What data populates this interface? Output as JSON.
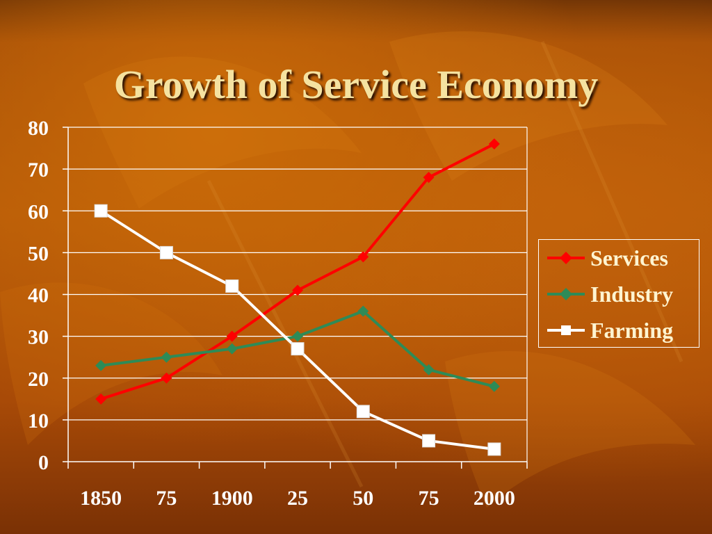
{
  "slide": {
    "title": "Growth of Service Economy"
  },
  "colors": {
    "services": "#ff0000",
    "industry": "#2e8b57",
    "farming": "#ffffff",
    "title": "#f5e2a0",
    "grid": "#ffffff"
  },
  "chart_data": {
    "type": "line",
    "title": "Growth of Service Economy",
    "categories": [
      "1850",
      "75",
      "1900",
      "25",
      "50",
      "75",
      "2000"
    ],
    "ylim": [
      0,
      80
    ],
    "yticks": [
      "0",
      "10",
      "20",
      "30",
      "40",
      "50",
      "60",
      "70",
      "80"
    ],
    "grid": true,
    "legend_position": "right",
    "series": [
      {
        "name": "Services",
        "marker": "diamond",
        "color": "#ff0000",
        "values": [
          15,
          20,
          30,
          41,
          49,
          68,
          76
        ]
      },
      {
        "name": "Industry",
        "marker": "diamond",
        "color": "#2e8b57",
        "values": [
          23,
          25,
          27,
          30,
          36,
          22,
          18
        ]
      },
      {
        "name": "Farming",
        "marker": "square",
        "color": "#ffffff",
        "values": [
          60,
          50,
          42,
          27,
          12,
          5,
          3
        ]
      }
    ]
  }
}
